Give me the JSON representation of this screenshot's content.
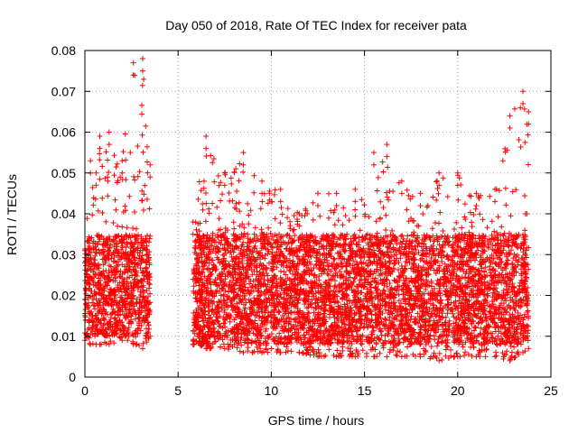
{
  "chart_data": {
    "type": "scatter",
    "title": "Day 050 of 2018, Rate Of TEC Index for receiver pata",
    "xlabel": "GPS time / hours",
    "ylabel": "ROTI / TECUs",
    "xlim": [
      0,
      25
    ],
    "ylim": [
      0,
      0.08
    ],
    "x_ticks": [
      "0",
      "5",
      "10",
      "15",
      "20",
      "25"
    ],
    "y_ticks": [
      "0",
      "0.01",
      "0.02",
      "0.03",
      "0.04",
      "0.05",
      "0.06",
      "0.07",
      "0.08"
    ],
    "grid": true,
    "marker": "plus",
    "color": "#ff0000",
    "segments": [
      {
        "x_range": [
          0.0,
          3.5
        ],
        "typical_range": [
          0.01,
          0.035
        ],
        "max": 0.078
      },
      {
        "x_range": [
          5.8,
          23.8
        ],
        "typical_range": [
          0.008,
          0.035
        ],
        "max": 0.07
      }
    ],
    "envelope": [
      {
        "x": 0.0,
        "min": 0.009,
        "max": 0.031
      },
      {
        "x": 0.3,
        "min": 0.008,
        "max": 0.053
      },
      {
        "x": 0.6,
        "min": 0.008,
        "max": 0.05
      },
      {
        "x": 0.8,
        "min": 0.008,
        "max": 0.059
      },
      {
        "x": 1.3,
        "min": 0.008,
        "max": 0.06
      },
      {
        "x": 2.0,
        "min": 0.009,
        "max": 0.053
      },
      {
        "x": 2.6,
        "min": 0.008,
        "max": 0.077
      },
      {
        "x": 3.1,
        "min": 0.007,
        "max": 0.078
      },
      {
        "x": 3.5,
        "min": 0.01,
        "max": 0.052
      },
      {
        "x": 5.8,
        "min": 0.008,
        "max": 0.038
      },
      {
        "x": 6.5,
        "min": 0.007,
        "max": 0.059
      },
      {
        "x": 7.5,
        "min": 0.007,
        "max": 0.05
      },
      {
        "x": 8.5,
        "min": 0.006,
        "max": 0.055
      },
      {
        "x": 9.5,
        "min": 0.006,
        "max": 0.048
      },
      {
        "x": 10.5,
        "min": 0.006,
        "max": 0.046
      },
      {
        "x": 11.5,
        "min": 0.006,
        "max": 0.04
      },
      {
        "x": 12.5,
        "min": 0.005,
        "max": 0.045
      },
      {
        "x": 13.5,
        "min": 0.005,
        "max": 0.045
      },
      {
        "x": 14.5,
        "min": 0.005,
        "max": 0.046
      },
      {
        "x": 15.5,
        "min": 0.005,
        "max": 0.055
      },
      {
        "x": 16.2,
        "min": 0.005,
        "max": 0.057
      },
      {
        "x": 17.0,
        "min": 0.005,
        "max": 0.048
      },
      {
        "x": 18.0,
        "min": 0.005,
        "max": 0.045
      },
      {
        "x": 19.0,
        "min": 0.004,
        "max": 0.05
      },
      {
        "x": 20.0,
        "min": 0.005,
        "max": 0.05
      },
      {
        "x": 21.0,
        "min": 0.005,
        "max": 0.045
      },
      {
        "x": 22.0,
        "min": 0.005,
        "max": 0.046
      },
      {
        "x": 22.8,
        "min": 0.004,
        "max": 0.064
      },
      {
        "x": 23.5,
        "min": 0.006,
        "max": 0.07
      },
      {
        "x": 23.8,
        "min": 0.007,
        "max": 0.065
      }
    ]
  }
}
